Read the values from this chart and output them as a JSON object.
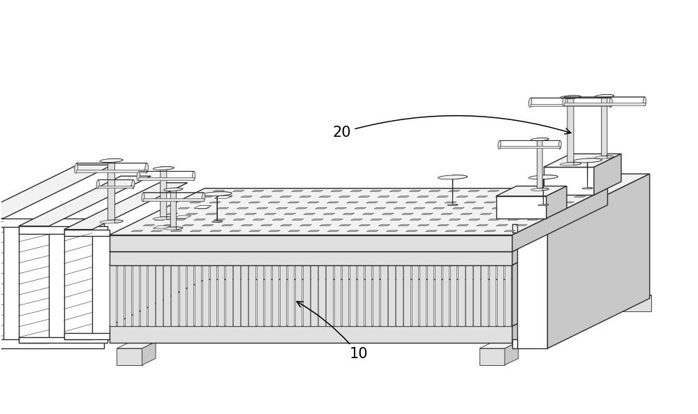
{
  "background_color": "#ffffff",
  "line_color": "#2a2a2a",
  "face_white": "#ffffff",
  "face_light": "#f2f2f2",
  "face_mid": "#e0e0e0",
  "face_dark": "#c8c8c8",
  "face_darker": "#b0b0b0",
  "label_10": "10",
  "label_20": "20",
  "figsize": [
    10.0,
    5.93
  ],
  "dpi": 100
}
